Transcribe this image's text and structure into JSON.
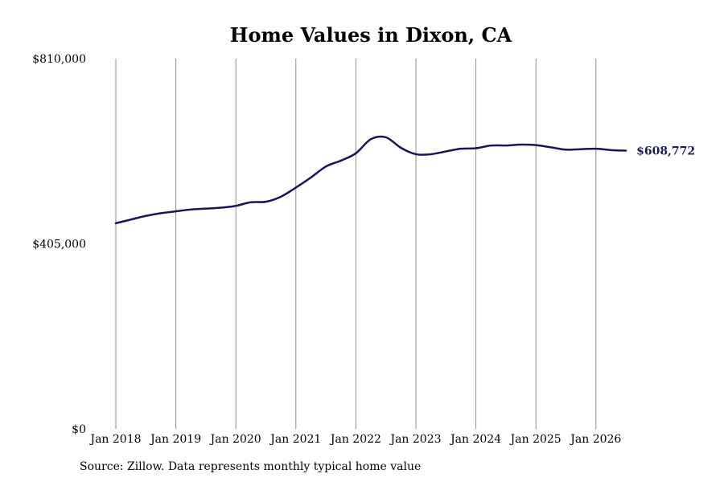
{
  "chart_data": {
    "type": "line",
    "title": "Home Values in Dixon, CA",
    "xlabel": "",
    "ylabel": "",
    "ylim": [
      0,
      810000
    ],
    "y_ticks": [
      {
        "value": 0,
        "label": "$0"
      },
      {
        "value": 405000,
        "label": "$405,000"
      },
      {
        "value": 810000,
        "label": "$810,000"
      }
    ],
    "x_ticks": [
      "Jan 2018",
      "Jan 2019",
      "Jan 2020",
      "Jan 2021",
      "Jan 2022",
      "Jan 2023",
      "Jan 2024",
      "Jan 2025",
      "Jan 2026"
    ],
    "grid": "vertical",
    "series": [
      {
        "color": "#15145f",
        "points": [
          [
            "2018-01",
            450000
          ],
          [
            "2018-04",
            458000
          ],
          [
            "2018-07",
            466000
          ],
          [
            "2018-10",
            472000
          ],
          [
            "2019-01",
            476000
          ],
          [
            "2019-04",
            480000
          ],
          [
            "2019-07",
            482000
          ],
          [
            "2019-10",
            484000
          ],
          [
            "2020-01",
            488000
          ],
          [
            "2020-04",
            496000
          ],
          [
            "2020-07",
            497000
          ],
          [
            "2020-10",
            508000
          ],
          [
            "2021-01",
            528000
          ],
          [
            "2021-04",
            550000
          ],
          [
            "2021-07",
            574000
          ],
          [
            "2021-10",
            587000
          ],
          [
            "2022-01",
            603000
          ],
          [
            "2022-04",
            634000
          ],
          [
            "2022-07",
            638000
          ],
          [
            "2022-10",
            615000
          ],
          [
            "2023-01",
            601000
          ],
          [
            "2023-04",
            601000
          ],
          [
            "2023-07",
            607000
          ],
          [
            "2023-10",
            613000
          ],
          [
            "2024-01",
            614000
          ],
          [
            "2024-04",
            620000
          ],
          [
            "2024-07",
            620000
          ],
          [
            "2024-10",
            622000
          ],
          [
            "2025-01",
            621000
          ],
          [
            "2025-04",
            616000
          ],
          [
            "2025-07",
            611000
          ],
          [
            "2025-10",
            612000
          ],
          [
            "2026-01",
            613000
          ],
          [
            "2026-04",
            610000
          ],
          [
            "2026-07",
            608772
          ]
        ]
      }
    ],
    "end_label": "$608,772",
    "source": "Source: Zillow. Data represents monthly typical home value"
  }
}
